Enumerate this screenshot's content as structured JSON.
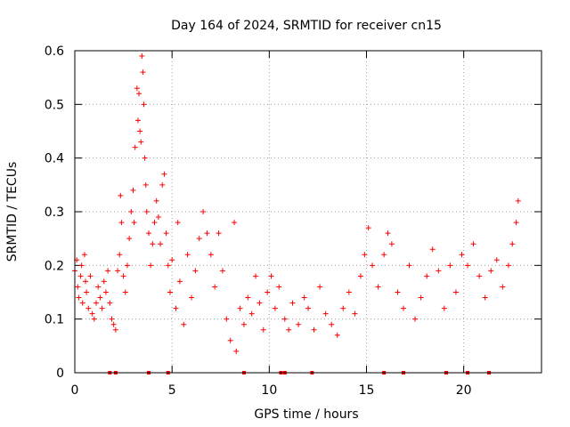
{
  "chart_data": {
    "type": "scatter",
    "title": "Day 164 of 2024, SRMTID for receiver cn15",
    "xlabel": "GPS time / hours",
    "ylabel": "SRMTID / TECUs",
    "xlim": [
      0,
      24
    ],
    "ylim": [
      0,
      0.6
    ],
    "grid": true,
    "marker": "plus",
    "color": "#ff0000",
    "x_ticks": [
      0,
      5,
      10,
      15,
      20
    ],
    "x_tick_labels": [
      "0",
      "5",
      "10",
      "15",
      "20"
    ],
    "y_ticks": [
      0,
      0.1,
      0.2,
      0.3,
      0.4,
      0.5,
      0.6
    ],
    "y_tick_labels": [
      "0",
      "0.1",
      "0.2",
      "0.3",
      "0.4",
      "0.5",
      "0.6"
    ],
    "series": [
      {
        "name": "SRMTID",
        "points": [
          [
            0.0,
            0.19
          ],
          [
            0.1,
            0.21
          ],
          [
            0.15,
            0.16
          ],
          [
            0.2,
            0.14
          ],
          [
            0.3,
            0.18
          ],
          [
            0.35,
            0.2
          ],
          [
            0.4,
            0.13
          ],
          [
            0.5,
            0.22
          ],
          [
            0.55,
            0.17
          ],
          [
            0.6,
            0.15
          ],
          [
            0.7,
            0.12
          ],
          [
            0.8,
            0.18
          ],
          [
            0.9,
            0.11
          ],
          [
            1.0,
            0.1
          ],
          [
            1.1,
            0.13
          ],
          [
            1.2,
            0.16
          ],
          [
            1.3,
            0.14
          ],
          [
            1.4,
            0.12
          ],
          [
            1.5,
            0.17
          ],
          [
            1.6,
            0.15
          ],
          [
            1.7,
            0.19
          ],
          [
            1.8,
            0.13
          ],
          [
            1.9,
            0.1
          ],
          [
            2.0,
            0.09
          ],
          [
            2.1,
            0.08
          ],
          [
            2.2,
            0.19
          ],
          [
            2.3,
            0.22
          ],
          [
            2.35,
            0.33
          ],
          [
            2.4,
            0.28
          ],
          [
            2.5,
            0.18
          ],
          [
            2.6,
            0.15
          ],
          [
            2.7,
            0.2
          ],
          [
            2.8,
            0.25
          ],
          [
            2.9,
            0.3
          ],
          [
            3.0,
            0.34
          ],
          [
            3.05,
            0.28
          ],
          [
            3.1,
            0.42
          ],
          [
            3.2,
            0.53
          ],
          [
            3.25,
            0.47
          ],
          [
            3.3,
            0.52
          ],
          [
            3.35,
            0.45
          ],
          [
            3.4,
            0.43
          ],
          [
            3.45,
            0.59
          ],
          [
            3.5,
            0.56
          ],
          [
            3.55,
            0.5
          ],
          [
            3.6,
            0.4
          ],
          [
            3.65,
            0.35
          ],
          [
            3.7,
            0.3
          ],
          [
            3.8,
            0.26
          ],
          [
            3.9,
            0.2
          ],
          [
            4.0,
            0.24
          ],
          [
            4.1,
            0.28
          ],
          [
            4.2,
            0.32
          ],
          [
            4.3,
            0.29
          ],
          [
            4.4,
            0.24
          ],
          [
            4.5,
            0.35
          ],
          [
            4.6,
            0.37
          ],
          [
            4.7,
            0.26
          ],
          [
            4.8,
            0.2
          ],
          [
            4.9,
            0.15
          ],
          [
            5.0,
            0.21
          ],
          [
            5.2,
            0.12
          ],
          [
            5.3,
            0.28
          ],
          [
            5.4,
            0.17
          ],
          [
            5.6,
            0.09
          ],
          [
            5.8,
            0.22
          ],
          [
            6.0,
            0.14
          ],
          [
            6.2,
            0.19
          ],
          [
            6.4,
            0.25
          ],
          [
            6.6,
            0.3
          ],
          [
            6.8,
            0.26
          ],
          [
            7.0,
            0.22
          ],
          [
            7.2,
            0.16
          ],
          [
            7.4,
            0.26
          ],
          [
            7.6,
            0.19
          ],
          [
            7.8,
            0.1
          ],
          [
            8.0,
            0.06
          ],
          [
            8.2,
            0.28
          ],
          [
            8.3,
            0.04
          ],
          [
            8.5,
            0.12
          ],
          [
            8.7,
            0.09
          ],
          [
            8.9,
            0.14
          ],
          [
            9.1,
            0.11
          ],
          [
            9.3,
            0.18
          ],
          [
            9.5,
            0.13
          ],
          [
            9.7,
            0.08
          ],
          [
            9.9,
            0.15
          ],
          [
            10.1,
            0.18
          ],
          [
            10.3,
            0.12
          ],
          [
            10.5,
            0.16
          ],
          [
            10.8,
            0.1
          ],
          [
            11.0,
            0.08
          ],
          [
            11.2,
            0.13
          ],
          [
            11.5,
            0.09
          ],
          [
            11.8,
            0.14
          ],
          [
            12.0,
            0.12
          ],
          [
            12.3,
            0.08
          ],
          [
            12.6,
            0.16
          ],
          [
            12.9,
            0.11
          ],
          [
            13.2,
            0.09
          ],
          [
            13.5,
            0.07
          ],
          [
            13.8,
            0.12
          ],
          [
            14.1,
            0.15
          ],
          [
            14.4,
            0.11
          ],
          [
            14.7,
            0.18
          ],
          [
            14.9,
            0.22
          ],
          [
            15.1,
            0.27
          ],
          [
            15.3,
            0.2
          ],
          [
            15.6,
            0.16
          ],
          [
            15.9,
            0.22
          ],
          [
            16.1,
            0.26
          ],
          [
            16.3,
            0.24
          ],
          [
            16.6,
            0.15
          ],
          [
            16.9,
            0.12
          ],
          [
            17.2,
            0.2
          ],
          [
            17.5,
            0.1
          ],
          [
            17.8,
            0.14
          ],
          [
            18.1,
            0.18
          ],
          [
            18.4,
            0.23
          ],
          [
            18.7,
            0.19
          ],
          [
            19.0,
            0.12
          ],
          [
            19.3,
            0.2
          ],
          [
            19.6,
            0.15
          ],
          [
            19.9,
            0.22
          ],
          [
            20.2,
            0.2
          ],
          [
            20.5,
            0.24
          ],
          [
            20.8,
            0.18
          ],
          [
            21.1,
            0.14
          ],
          [
            21.4,
            0.19
          ],
          [
            21.7,
            0.21
          ],
          [
            22.0,
            0.16
          ],
          [
            22.3,
            0.2
          ],
          [
            22.5,
            0.24
          ],
          [
            22.7,
            0.28
          ],
          [
            22.8,
            0.32
          ]
        ]
      }
    ],
    "gap_markers_x": [
      1.8,
      2.1,
      3.8,
      4.8,
      8.7,
      10.6,
      10.8,
      12.2,
      15.9,
      16.9,
      19.1,
      20.2,
      21.3
    ]
  }
}
